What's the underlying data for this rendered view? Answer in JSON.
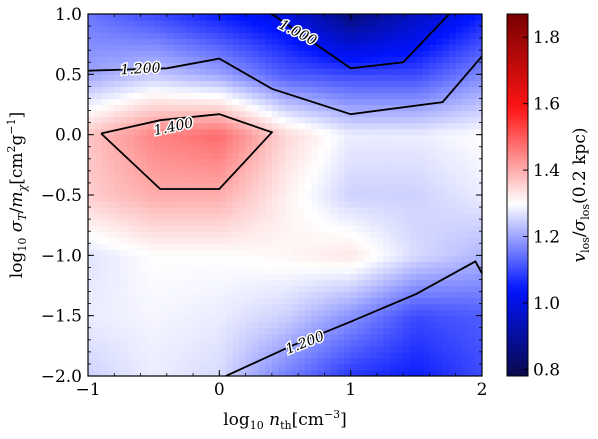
{
  "chart_data": {
    "type": "heatmap",
    "xlabel": "log10 n_th [cm^-3]",
    "ylabel": "log10 σ_T / m_χ [cm² g⁻¹]",
    "colorbar_label": "v_los / σ_los(0.2 kpc)",
    "xlim": [
      -1,
      2
    ],
    "ylim": [
      -2,
      1
    ],
    "x_ticks": [
      -1,
      0,
      1,
      2
    ],
    "y_ticks": [
      -2,
      -1.5,
      -1,
      -0.5,
      0,
      0.5,
      1
    ],
    "x_tick_labels": [
      "−1",
      "0",
      "1",
      "2"
    ],
    "y_tick_labels": [
      "−2.0",
      "−1.5",
      "−1.0",
      "−0.5",
      "0.0",
      "0.5",
      "1.0"
    ],
    "colorbar": {
      "min": 0.78,
      "max": 1.87,
      "center": 1.3,
      "colormap": "seismic",
      "ticks": [
        0.8,
        1.0,
        1.2,
        1.4,
        1.6,
        1.8
      ],
      "tick_labels": [
        "0.8",
        "1.0",
        "1.2",
        "1.4",
        "1.6",
        "1.8"
      ]
    },
    "x": [
      -1,
      -0.5,
      0,
      0.5,
      1,
      1.5,
      2
    ],
    "y": [
      -2,
      -1.5,
      -1,
      -0.5,
      0,
      0.5,
      1
    ],
    "z": [
      [
        1.25,
        1.28,
        1.26,
        1.16,
        1.08,
        1.05,
        1.1
      ],
      [
        1.28,
        1.29,
        1.28,
        1.25,
        1.18,
        1.1,
        1.12
      ],
      [
        1.27,
        1.3,
        1.3,
        1.31,
        1.33,
        1.26,
        1.22
      ],
      [
        1.36,
        1.4,
        1.4,
        1.32,
        1.25,
        1.25,
        1.28
      ],
      [
        1.37,
        1.45,
        1.48,
        1.35,
        1.28,
        1.28,
        1.3
      ],
      [
        1.2,
        1.24,
        1.2,
        1.12,
        1.1,
        1.1,
        1.17
      ],
      [
        1.15,
        1.1,
        1.05,
        1.0,
        0.85,
        0.95,
        1.05
      ]
    ],
    "contours": [
      {
        "level": "1.000",
        "points": [
          [
            0.4,
            1.0
          ],
          [
            1.0,
            0.55
          ],
          [
            1.4,
            0.6
          ],
          [
            1.75,
            1.0
          ]
        ]
      },
      {
        "level": "1.200",
        "points": [
          [
            -1.0,
            0.53
          ],
          [
            -0.4,
            0.55
          ],
          [
            0.0,
            0.63
          ],
          [
            0.4,
            0.38
          ],
          [
            1.0,
            0.17
          ],
          [
            1.7,
            0.27
          ],
          [
            2.0,
            0.65
          ]
        ]
      },
      {
        "level": "1.400",
        "points": [
          [
            -0.9,
            0.01
          ],
          [
            -0.45,
            0.12
          ],
          [
            0.0,
            0.17
          ],
          [
            0.4,
            0.02
          ],
          [
            0.0,
            -0.45
          ],
          [
            -0.45,
            -0.45
          ],
          [
            -0.9,
            0.01
          ]
        ]
      },
      {
        "level": "1.200",
        "points": [
          [
            0.05,
            -2.0
          ],
          [
            0.55,
            -1.75
          ],
          [
            1.0,
            -1.55
          ],
          [
            1.5,
            -1.32
          ],
          [
            1.95,
            -1.05
          ],
          [
            2.0,
            -1.15
          ]
        ]
      }
    ],
    "contour_labels": [
      {
        "text": "1.000",
        "x": 0.6,
        "y": 0.85,
        "angle": 27
      },
      {
        "text": "1.200",
        "x": -0.6,
        "y": 0.55,
        "angle": -3
      },
      {
        "text": "1.400",
        "x": -0.35,
        "y": 0.07,
        "angle": -12
      },
      {
        "text": "1.200",
        "x": 0.65,
        "y": -1.72,
        "angle": -21
      }
    ]
  }
}
